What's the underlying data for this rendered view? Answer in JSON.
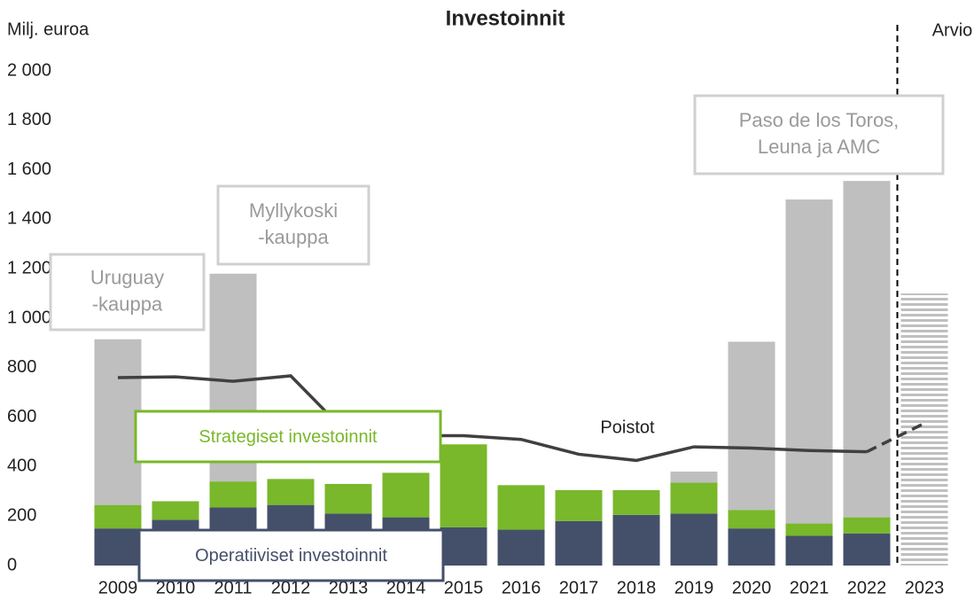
{
  "chart_data": {
    "type": "bar",
    "stacked": true,
    "title": "Investoinnit",
    "y_label": "Milj. euroa",
    "categories": [
      "2009",
      "2010",
      "2011",
      "2012",
      "2013",
      "2014",
      "2015",
      "2016",
      "2017",
      "2018",
      "2019",
      "2020",
      "2021",
      "2022",
      "2023"
    ],
    "series": [
      {
        "name": "Operatiiviset investoinnit",
        "color": "#44506a",
        "values": [
          150,
          185,
          235,
          245,
          210,
          195,
          155,
          145,
          180,
          205,
          210,
          150,
          120,
          130,
          null
        ]
      },
      {
        "name": "Strategiset investoinnit",
        "color": "#78b82a",
        "values": [
          95,
          75,
          105,
          105,
          120,
          180,
          335,
          180,
          125,
          100,
          125,
          75,
          50,
          65,
          null
        ]
      },
      {
        "color": "#bfbfbf",
        "values": [
          670,
          null,
          840,
          null,
          null,
          null,
          null,
          null,
          null,
          null,
          45,
          680,
          1310,
          1360,
          null
        ]
      },
      {
        "color": "#bfbfbf",
        "pattern": "horizontal-stripes",
        "values": [
          null,
          null,
          null,
          null,
          null,
          null,
          null,
          null,
          null,
          null,
          null,
          null,
          null,
          null,
          1100
        ]
      },
      {
        "name": "Poistot",
        "type": "line",
        "color": "#404040",
        "dashed_categories": [
          "2023"
        ],
        "values": [
          760,
          763,
          745,
          767,
          530,
          525,
          525,
          510,
          450,
          425,
          480,
          475,
          465,
          460,
          575
        ]
      }
    ],
    "ylim": [
      0,
      2000
    ],
    "yticks": [
      0,
      200,
      400,
      600,
      800,
      {
        "value": 1000,
        "label": "1 000"
      },
      {
        "value": 1200,
        "label": "1 200"
      },
      {
        "value": 1400,
        "label": "1 400"
      },
      {
        "value": 1600,
        "label": "1 600"
      },
      {
        "value": 1800,
        "label": "1 800"
      },
      {
        "value": 2000,
        "label": "2 000"
      }
    ],
    "grid": false,
    "forecast_label": "Arvio",
    "forecast_from": "2023",
    "annotations": [
      {
        "lines": [
          "Uruguay",
          "-kauppa"
        ],
        "category": "2009"
      },
      {
        "lines": [
          "Myllykoski",
          "-kauppa"
        ],
        "category": "2011"
      },
      {
        "lines": [
          "Paso de los Toros,",
          "Leuna ja AMC"
        ],
        "category": "2021"
      }
    ]
  }
}
